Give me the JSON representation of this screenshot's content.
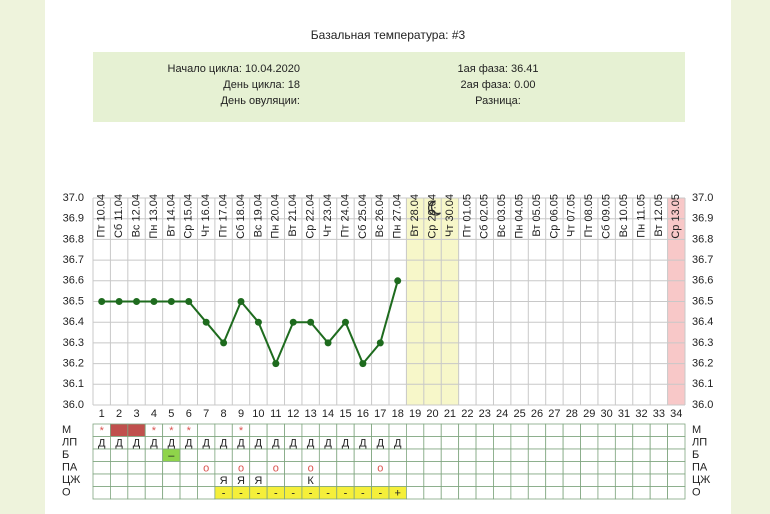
{
  "title": "Базальная температура: #3",
  "info": {
    "left": [
      "Начало цикла: 10.04.2020",
      "День цикла: 18",
      "День овуляции:"
    ],
    "right": [
      "1ая фаза: 36.41",
      "2ая фаза: 0.00",
      "Разница:"
    ]
  },
  "chart_data": {
    "type": "line",
    "categories": [
      "Пт 10.04",
      "Сб 11.04",
      "Вс 12.04",
      "Пн 13.04",
      "Вт 14.04",
      "Ср 15.04",
      "Чт 16.04",
      "Пт 17.04",
      "Сб 18.04",
      "Вс 19.04",
      "Пн 20.04",
      "Вт 21.04",
      "Ср 22.04",
      "Чт 23.04",
      "Пт 24.04",
      "Сб 25.04",
      "Вс 26.04",
      "Пн 27.04",
      "Вт 28.04",
      "Ср 29.04",
      "Чт 30.04",
      "Пт 01.05",
      "Сб 02.05",
      "Вс 03.05",
      "Пн 04.05",
      "Вт 05.05",
      "Ср 06.05",
      "Чт 07.05",
      "Пт 08.05",
      "Сб 09.05",
      "Вс 10.05",
      "Пн 11.05",
      "Вт 12.05",
      "Ср 13.05"
    ],
    "day_numbers": [
      1,
      2,
      3,
      4,
      5,
      6,
      7,
      8,
      9,
      10,
      11,
      12,
      13,
      14,
      15,
      16,
      17,
      18,
      19,
      20,
      21,
      22,
      23,
      24,
      25,
      26,
      27,
      28,
      29,
      30,
      31,
      32,
      33,
      34
    ],
    "values": [
      36.5,
      36.5,
      36.5,
      36.5,
      36.5,
      36.5,
      36.4,
      36.3,
      36.5,
      36.4,
      36.2,
      36.4,
      36.4,
      36.3,
      36.4,
      36.2,
      36.3,
      36.6,
      null,
      null,
      null,
      null,
      null,
      null,
      null,
      null,
      null,
      null,
      null,
      null,
      null,
      null,
      null,
      null
    ],
    "color": "#1e6b1e",
    "ylim": [
      36,
      37
    ],
    "yticks": [
      {
        "value": 36,
        "label": "36.0"
      },
      36.1,
      36.2,
      36.3,
      36.4,
      36.5,
      36.6,
      36.7,
      36.8,
      36.9,
      {
        "value": 37,
        "label": "37.0"
      }
    ],
    "grid": true
  },
  "table": {
    "rows": [
      {
        "label": "М",
        "color": "#d9534f",
        "cells": [
          "*",
          null,
          null,
          "*",
          "*",
          "*",
          null,
          null,
          "*",
          null,
          null,
          null,
          null,
          null,
          null,
          null,
          null,
          null,
          null,
          null,
          null,
          null,
          null,
          null,
          null,
          null,
          null,
          null,
          null,
          null,
          null,
          null,
          null,
          null
        ],
        "fills": [
          null,
          "#c0504d",
          "#c0504d",
          null,
          null,
          null,
          null,
          null,
          null,
          null,
          null,
          null,
          null,
          null,
          null,
          null,
          null,
          null,
          null,
          null,
          null,
          null,
          null,
          null,
          null,
          null,
          null,
          null,
          null,
          null,
          null,
          null,
          null,
          null
        ]
      },
      {
        "label": "ЛП",
        "color": "#222222",
        "cells": [
          "Д",
          "Д",
          "Д",
          "Д",
          "Д",
          "Д",
          "Д",
          "Д",
          "Д",
          "Д",
          "Д",
          "Д",
          "Д",
          "Д",
          "Д",
          "Д",
          "Д",
          "Д",
          null,
          null,
          null,
          null,
          null,
          null,
          null,
          null,
          null,
          null,
          null,
          null,
          null,
          null,
          null,
          null
        ]
      },
      {
        "label": "Б",
        "color": "#222222",
        "cells": [
          null,
          null,
          null,
          null,
          "–",
          null,
          null,
          null,
          null,
          null,
          null,
          null,
          null,
          null,
          null,
          null,
          null,
          null,
          null,
          null,
          null,
          null,
          null,
          null,
          null,
          null,
          null,
          null,
          null,
          null,
          null,
          null,
          null,
          null
        ],
        "fills": [
          null,
          null,
          null,
          null,
          "#8fd44a",
          null,
          null,
          null,
          null,
          null,
          null,
          null,
          null,
          null,
          null,
          null,
          null,
          null,
          null,
          null,
          null,
          null,
          null,
          null,
          null,
          null,
          null,
          null,
          null,
          null,
          null,
          null,
          null,
          null
        ]
      },
      {
        "label": "ПА",
        "color": "#d9534f",
        "cells": [
          null,
          null,
          null,
          null,
          null,
          null,
          "о",
          null,
          "о",
          null,
          "о",
          null,
          "о",
          null,
          null,
          null,
          "о",
          null,
          null,
          null,
          null,
          null,
          null,
          null,
          null,
          null,
          null,
          null,
          null,
          null,
          null,
          null,
          null,
          null
        ]
      },
      {
        "label": "ЦЖ",
        "color": "#222222",
        "cells": [
          null,
          null,
          null,
          null,
          null,
          null,
          null,
          "Я",
          "Я",
          "Я",
          null,
          null,
          "К",
          null,
          null,
          null,
          null,
          null,
          null,
          null,
          null,
          null,
          null,
          null,
          null,
          null,
          null,
          null,
          null,
          null,
          null,
          null,
          null,
          null
        ]
      },
      {
        "label": "О",
        "color": "#222222",
        "cells": [
          null,
          null,
          null,
          null,
          null,
          null,
          null,
          "-",
          "-",
          "-",
          "-",
          "-",
          "-",
          "-",
          "-",
          "-",
          "-",
          "+",
          null,
          null,
          null,
          null,
          null,
          null,
          null,
          null,
          null,
          null,
          null,
          null,
          null,
          null,
          null,
          null
        ],
        "fills": [
          null,
          null,
          null,
          null,
          null,
          null,
          null,
          "#f5ef3a",
          "#f5ef3a",
          "#f5ef3a",
          "#f5ef3a",
          "#f5ef3a",
          "#f5ef3a",
          "#f5ef3a",
          "#f5ef3a",
          "#f5ef3a",
          "#f5ef3a",
          "#f5ef3a",
          null,
          null,
          null,
          null,
          null,
          null,
          null,
          null,
          null,
          null,
          null,
          null,
          null,
          null,
          null,
          null
        ]
      }
    ]
  }
}
